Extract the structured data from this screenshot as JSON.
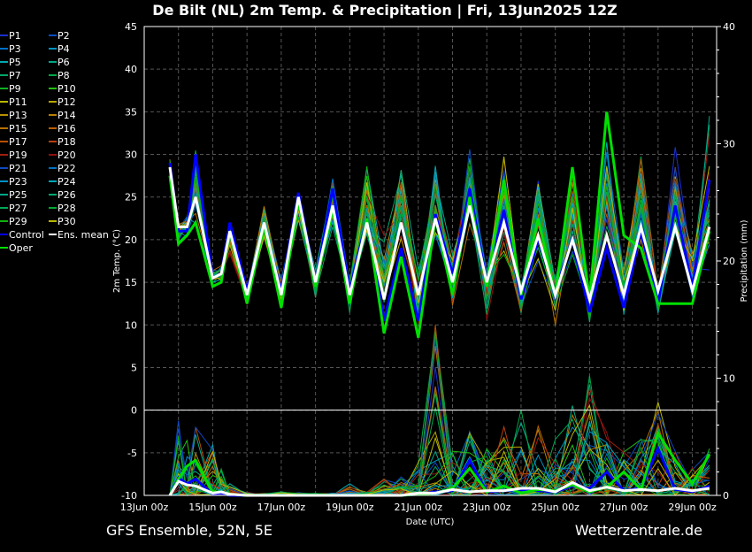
{
  "chart_data": {
    "type": "line",
    "title": "De Bilt  (NL)  2m Temp. & Precipitation | Fri, 13Jun2025 12Z",
    "xlabel": "Date (UTC)",
    "ylabel": "2m Temp. (°C)",
    "ylabel_right": "Precipitation (mm)",
    "ylim": [
      -10,
      45
    ],
    "ylim_right": [
      0,
      40
    ],
    "yticks": [
      -10,
      -5,
      0,
      5,
      10,
      15,
      20,
      25,
      30,
      35,
      40,
      45
    ],
    "yticks_right": [
      0,
      10,
      20,
      30,
      40
    ],
    "xticks_hours": [
      0,
      48,
      96,
      144,
      192,
      240,
      288,
      336,
      384
    ],
    "xtick_labels": [
      "13Jun 00z",
      "15Jun 00z",
      "17Jun 00z",
      "19Jun 00z",
      "21Jun 00z",
      "23Jun 00z",
      "25Jun 00z",
      "27Jun 00z",
      "29Jun 00z"
    ],
    "x_range_hours": [
      0,
      401
    ],
    "grid": true,
    "legend_position": "left-outside",
    "hours": [
      18,
      24,
      30,
      36,
      48,
      54,
      60,
      72,
      84,
      96,
      108,
      120,
      132,
      144,
      156,
      168,
      180,
      192,
      204,
      216,
      228,
      240,
      252,
      264,
      276,
      288,
      300,
      312,
      324,
      336,
      348,
      360,
      372,
      384,
      396
    ],
    "temp": {
      "ens_mean": [
        28.5,
        21.5,
        21.5,
        25,
        15.5,
        16,
        21,
        13.5,
        22,
        13.5,
        25,
        15,
        24,
        13.5,
        22,
        13,
        22,
        13.5,
        22.5,
        15,
        24,
        15,
        22,
        14,
        20.5,
        13.5,
        20,
        13,
        20.5,
        13.5,
        21.5,
        14,
        21.5,
        14,
        21.5
      ],
      "control": [
        29,
        21,
        21,
        30,
        15.5,
        16,
        22,
        14,
        21.5,
        14,
        25.5,
        15,
        26,
        14,
        22.5,
        10.5,
        19,
        10.5,
        23,
        16,
        26,
        15,
        23.5,
        13,
        20,
        14,
        20,
        11.5,
        19,
        12,
        21,
        12.5,
        24,
        14.5,
        27
      ],
      "oper": [
        27.5,
        19.5,
        20.5,
        22,
        14.5,
        15,
        21,
        12.5,
        21.5,
        12,
        24.5,
        14.5,
        23.5,
        12.5,
        22.5,
        9,
        18,
        8.5,
        22.5,
        13.5,
        25,
        14.5,
        27,
        13.5,
        22.5,
        13.5,
        28.5,
        13,
        35,
        20.5,
        19,
        12.5,
        12.5,
        12.5,
        21
      ],
      "members_min": [
        27,
        19.5,
        20,
        21,
        14.5,
        14.5,
        18,
        12,
        19,
        12,
        22,
        12.5,
        21,
        10.5,
        19,
        9,
        16,
        8.5,
        17,
        11,
        20,
        10,
        17,
        10,
        16,
        9.5,
        16,
        9,
        19,
        9,
        17,
        10,
        18,
        10.5,
        14
      ],
      "members_max": [
        30,
        22.5,
        23,
        32,
        17,
        17.5,
        23,
        15,
        25,
        16,
        26,
        17,
        28.5,
        17,
        29.5,
        21,
        31.5,
        17.5,
        31,
        19,
        32,
        18,
        32.5,
        16,
        32,
        16,
        31,
        16,
        35,
        18,
        33,
        15,
        32.5,
        20,
        36
      ]
    },
    "precip": {
      "ens_mean": [
        0,
        1.2,
        0.9,
        0.8,
        0.2,
        0.3,
        0.1,
        0,
        0,
        0,
        0,
        0,
        0,
        0,
        0,
        0,
        0,
        0.2,
        0.2,
        0.5,
        0.3,
        0.4,
        0.4,
        0.6,
        0.6,
        0.3,
        1.1,
        0.4,
        0.7,
        0.4,
        0.5,
        0.4,
        0.6,
        0.4,
        0.6
      ],
      "control": [
        0,
        1.5,
        1.0,
        1.4,
        0.1,
        0.2,
        0,
        0,
        0,
        0,
        0,
        0,
        0,
        0,
        0,
        0,
        0,
        0.1,
        0.3,
        0.4,
        3.0,
        0.3,
        0.4,
        0.5,
        0.4,
        0.3,
        0.8,
        0.6,
        2.0,
        0.4,
        0.6,
        4.0,
        0.5,
        0.3,
        0.8
      ],
      "oper": [
        0,
        1.4,
        2.5,
        3.0,
        0.3,
        0.3,
        0.1,
        0,
        0,
        0,
        0,
        0,
        0,
        0,
        0,
        0,
        0,
        0.1,
        0.2,
        0.6,
        2.3,
        0.3,
        0.8,
        0.2,
        0.5,
        0.4,
        0.9,
        0.3,
        0.7,
        2.0,
        0.5,
        5.3,
        3.0,
        1.0,
        3.5
      ],
      "members_max": [
        0,
        6.5,
        5.5,
        6.5,
        4.5,
        2.5,
        1.5,
        0.3,
        0.2,
        0.3,
        0.3,
        0.2,
        0.2,
        1.0,
        0.3,
        1.5,
        1.8,
        3.0,
        15,
        4,
        6,
        4,
        6,
        7.5,
        6,
        5,
        8,
        11,
        5.5,
        4,
        5,
        8.5,
        4,
        2.5,
        4
      ]
    },
    "legend": [
      {
        "name": "P1",
        "color": "#1a2fd0"
      },
      {
        "name": "P2",
        "color": "#0a4cc0"
      },
      {
        "name": "P3",
        "color": "#0070c8"
      },
      {
        "name": "P4",
        "color": "#0094c0"
      },
      {
        "name": "P5",
        "color": "#00a8b0"
      },
      {
        "name": "P6",
        "color": "#00a888"
      },
      {
        "name": "P7",
        "color": "#00a868"
      },
      {
        "name": "P8",
        "color": "#00a848"
      },
      {
        "name": "P9",
        "color": "#10b020"
      },
      {
        "name": "P10",
        "color": "#20c010"
      },
      {
        "name": "P11",
        "color": "#b8b800"
      },
      {
        "name": "P12",
        "color": "#b8a800"
      },
      {
        "name": "P13",
        "color": "#b89000"
      },
      {
        "name": "P14",
        "color": "#b88000"
      },
      {
        "name": "P15",
        "color": "#b87000"
      },
      {
        "name": "P16",
        "color": "#b86000"
      },
      {
        "name": "P17",
        "color": "#b85000"
      },
      {
        "name": "P18",
        "color": "#b84010"
      },
      {
        "name": "P19",
        "color": "#a02010"
      },
      {
        "name": "P20",
        "color": "#901010"
      },
      {
        "name": "P21",
        "color": "#1048c0"
      },
      {
        "name": "P22",
        "color": "#0070c0"
      },
      {
        "name": "P23",
        "color": "#0090c8"
      },
      {
        "name": "P24",
        "color": "#00a8b8"
      },
      {
        "name": "P25",
        "color": "#00a888"
      },
      {
        "name": "P26",
        "color": "#00a870"
      },
      {
        "name": "P27",
        "color": "#00a850"
      },
      {
        "name": "P28",
        "color": "#00a830"
      },
      {
        "name": "P29",
        "color": "#10b010"
      },
      {
        "name": "P30",
        "color": "#b8b800"
      },
      {
        "name": "Control",
        "color": "#0000ff"
      },
      {
        "name": "Ens. mean",
        "color": "#ffffff"
      },
      {
        "name": "Oper",
        "color": "#00e000"
      }
    ]
  },
  "footer": {
    "left": "GFS Ensemble, 52N, 5E",
    "right": "Wetterzentrale.de"
  }
}
